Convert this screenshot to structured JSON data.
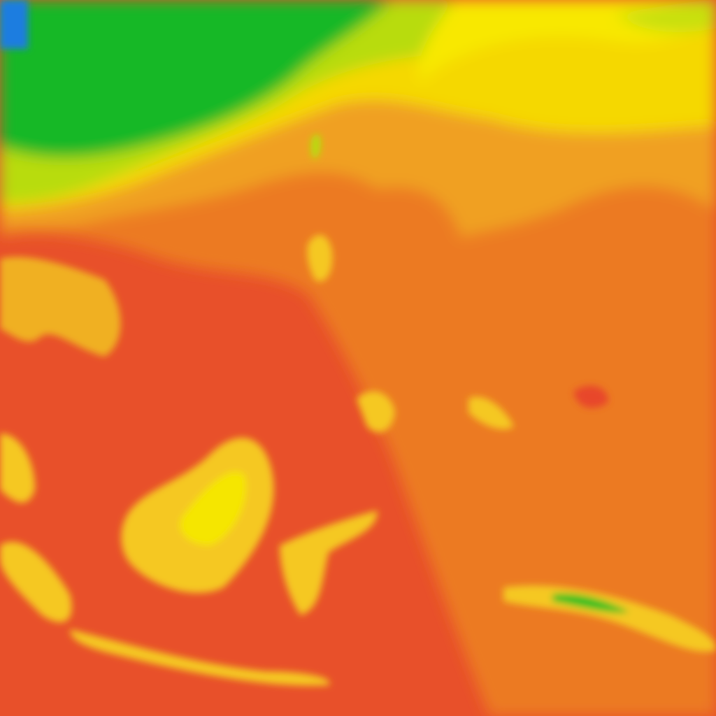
{
  "map": {
    "type": "temperature-heatmap-tile",
    "palette": {
      "cold": "#1a7de0",
      "cool": "#12b82a",
      "mild": "#8fd21a",
      "warm": "#f5e600",
      "hot": "#f0a020",
      "hotter": "#ec7a22",
      "hottest": "#e8462a"
    }
  }
}
